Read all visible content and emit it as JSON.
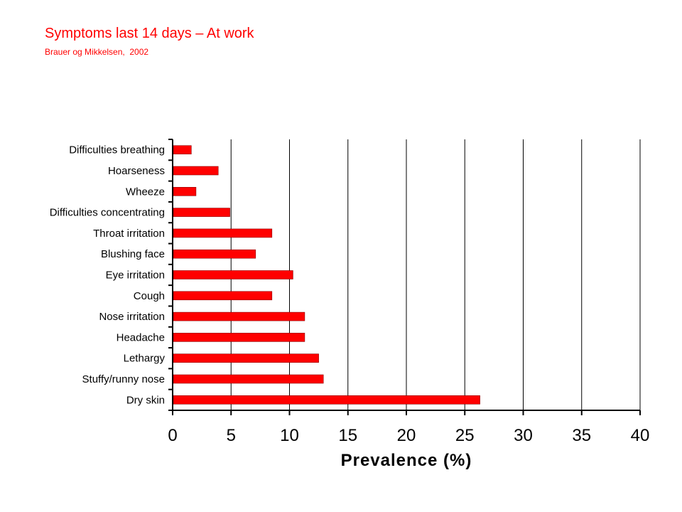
{
  "title": "Symptoms last 14 days – At work",
  "subtitle": "Brauer og Mikkelsen,  2002",
  "colors": {
    "bar": "#ff0000",
    "bar_stroke": "#8b0000",
    "title": "#ff0000",
    "axis": "#000000",
    "grid": "#000000"
  },
  "chart_data": {
    "type": "bar",
    "orientation": "horizontal",
    "categories": [
      "Difficulties breathing",
      "Hoarseness",
      "Wheeze",
      "Difficulties concentrating",
      "Throat irritation",
      "Blushing face",
      "Eye irritation",
      "Cough",
      "Nose irritation",
      "Headache",
      "Lethargy",
      "Stuffy/runny nose",
      "Dry skin"
    ],
    "values": [
      1.6,
      3.9,
      2.0,
      4.9,
      8.5,
      7.1,
      10.3,
      8.5,
      11.3,
      11.3,
      12.5,
      12.9,
      26.3
    ],
    "xlabel": "Prevalence  (%)",
    "ylabel": "",
    "xlim": [
      0,
      40
    ],
    "xticks": [
      "0",
      "5",
      "10",
      "15",
      "20",
      "25",
      "30",
      "35",
      "40"
    ],
    "grid": "vertical"
  }
}
